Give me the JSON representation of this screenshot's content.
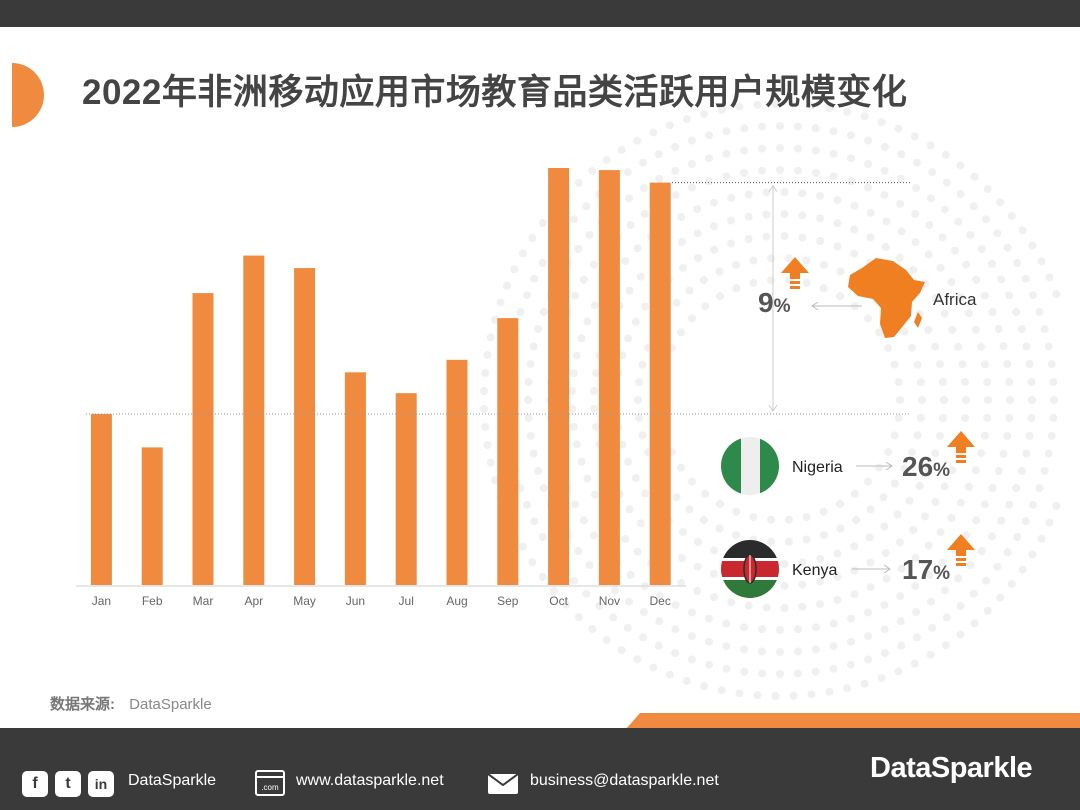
{
  "title": "2022年非洲移动应用市场教育品类活跃用户规模变化",
  "chart_data": {
    "type": "bar",
    "categories": [
      "Jan",
      "Feb",
      "Mar",
      "Apr",
      "May",
      "Jun",
      "Jul",
      "Aug",
      "Sep",
      "Oct",
      "Nov",
      "Dec"
    ],
    "values": [
      41,
      33,
      70,
      79,
      76,
      51,
      46,
      54,
      64,
      100,
      99.5,
      96.5
    ],
    "ylim": [
      0,
      100
    ],
    "bar_color": "#f08a3e"
  },
  "annotations": {
    "africa": {
      "label": "Africa",
      "growth": "9",
      "unit": "%"
    },
    "countries": [
      {
        "name": "Nigeria",
        "growth": "26",
        "unit": "%"
      },
      {
        "name": "Kenya",
        "growth": "17",
        "unit": "%"
      }
    ]
  },
  "source": {
    "label": "数据来源:",
    "value": "DataSparkle"
  },
  "footer": {
    "social_name": "DataSparkle",
    "website": "www.datasparkle.net",
    "email": "business@datasparkle.net",
    "logo": "DataSparkle",
    "icons": [
      "facebook-icon",
      "twitter-icon",
      "linkedin-icon",
      "website-icon",
      "mail-icon"
    ]
  },
  "colors": {
    "accent": "#f08a3e",
    "dark": "#3a3a3a",
    "text": "#444444"
  }
}
